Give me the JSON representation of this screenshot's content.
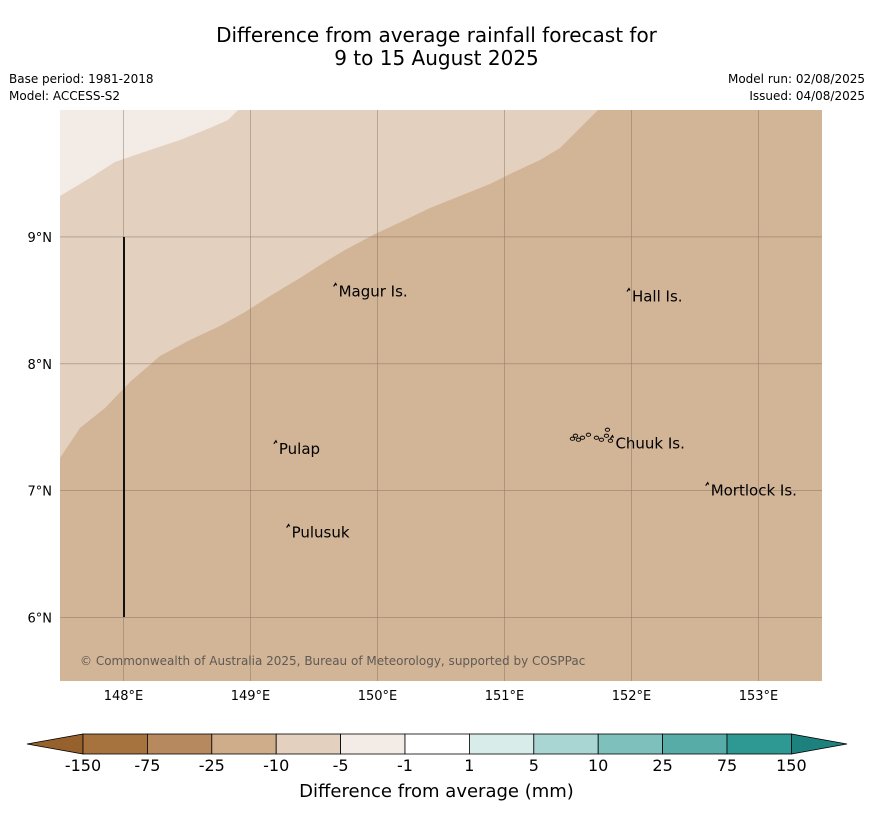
{
  "title": {
    "line1": "Difference from average rainfall forecast for",
    "line2": "9 to 15 August 2025"
  },
  "meta": {
    "base_period": "Base period: 1981-2018",
    "model": "Model: ACCESS-S2",
    "model_run": "Model run: 02/08/2025",
    "issued": "Issued: 04/08/2025"
  },
  "map": {
    "lon_range": [
      147.5,
      153.5
    ],
    "lat_range": [
      5.5,
      10.0
    ],
    "lon_ticks": [
      148,
      149,
      150,
      151,
      152,
      153
    ],
    "lon_tick_labels": [
      "148°E",
      "149°E",
      "150°E",
      "151°E",
      "152°E",
      "153°E"
    ],
    "lat_ticks": [
      6,
      7,
      8,
      9
    ],
    "lat_tick_labels": [
      "6°N",
      "7°N",
      "8°N",
      "9°N"
    ],
    "places": [
      {
        "name": "Magur Is.",
        "lon": 149.67,
        "lat": 8.57
      },
      {
        "name": "Hall Is.",
        "lon": 151.98,
        "lat": 8.53
      },
      {
        "name": "Pulap",
        "lon": 149.2,
        "lat": 7.33
      },
      {
        "name": "Chuuk Is.",
        "lon": 151.85,
        "lat": 7.37
      },
      {
        "name": "Mortlock Is.",
        "lon": 152.6,
        "lat": 7.0
      },
      {
        "name": "Pulusuk",
        "lon": 149.3,
        "lat": 6.67
      }
    ],
    "copyright": "© Commonwealth of Australia 2025, Bureau of Meteorology, supported by COSPPac",
    "colors": {
      "cat_-25_-10": "#d2b496",
      "cat_-10_-5": "#e3d0bf",
      "cat_-5_-1": "#f3ece6",
      "grid": "#8a7462"
    }
  },
  "colorbar": {
    "title": "Difference from average (mm)",
    "labels": [
      "-150",
      "-75",
      "-25",
      "-10",
      "-5",
      "-1",
      "1",
      "5",
      "10",
      "25",
      "75",
      "150"
    ],
    "colors": [
      "#a6733f",
      "#b7895f",
      "#cfad8a",
      "#e3d0bf",
      "#f3ece6",
      "#ffffff",
      "#d8ecea",
      "#a9d5d2",
      "#7ec0bc",
      "#58aca8",
      "#2e9893"
    ],
    "low_extend_color": "#96612d",
    "high_extend_color": "#1d827d"
  }
}
